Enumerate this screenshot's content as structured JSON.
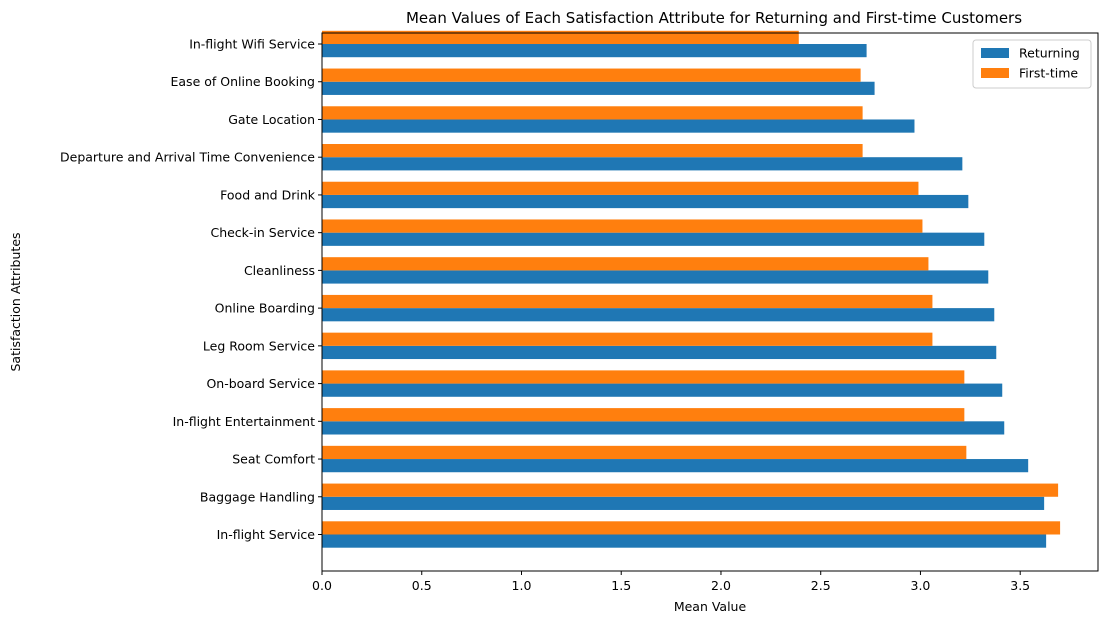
{
  "chart_data": {
    "type": "bar",
    "orientation": "horizontal",
    "title": "Mean Values of Each Satisfaction Attribute for Returning and First-time Customers",
    "xlabel": "Mean Value",
    "ylabel": "Satisfaction Attributes",
    "xlim": [
      0,
      3.89
    ],
    "xticks": [
      "0.0",
      "0.5",
      "1.0",
      "1.5",
      "2.0",
      "2.5",
      "3.0",
      "3.5"
    ],
    "grid": false,
    "legend_position": "top-right",
    "categories": [
      "In-flight Service",
      "Baggage Handling",
      "Seat Comfort",
      "In-flight Entertainment",
      "On-board Service",
      "Leg Room Service",
      "Online Boarding",
      "Cleanliness",
      "Check-in Service",
      "Food and Drink",
      "Departure and Arrival Time Convenience",
      "Gate Location",
      "Ease of Online Booking",
      "In-flight Wifi Service"
    ],
    "series": [
      {
        "name": "Returning",
        "color": "#1f77b4",
        "values": [
          3.63,
          3.62,
          3.54,
          3.42,
          3.41,
          3.38,
          3.37,
          3.34,
          3.32,
          3.24,
          3.21,
          2.97,
          2.77,
          2.73
        ]
      },
      {
        "name": "First-time",
        "color": "#ff7f0e",
        "values": [
          3.7,
          3.69,
          3.23,
          3.22,
          3.22,
          3.06,
          3.06,
          3.04,
          3.01,
          2.99,
          2.71,
          2.71,
          2.7,
          2.39
        ]
      }
    ]
  }
}
